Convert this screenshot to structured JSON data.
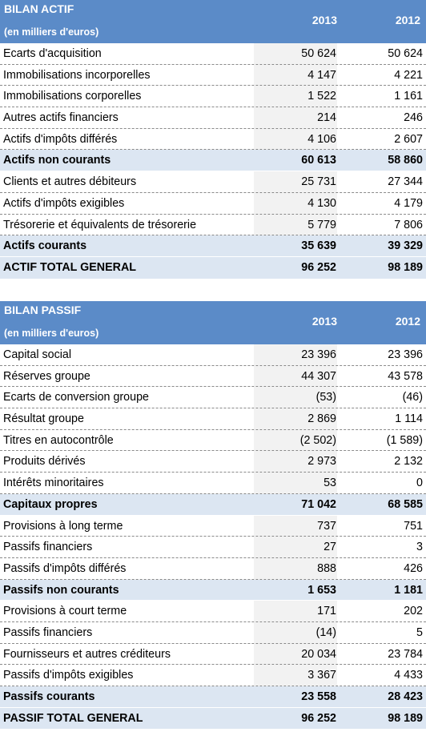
{
  "actif": {
    "title": "BILAN ACTIF",
    "subtitle": "(en milliers d'euros)",
    "year1": "2013",
    "year2": "2012",
    "rows": [
      {
        "label": "Ecarts d'acquisition",
        "v2013": "50 624",
        "v2012": "50 624",
        "kind": "normal"
      },
      {
        "label": "Immobilisations incorporelles",
        "v2013": "4 147",
        "v2012": "4 221",
        "kind": "normal"
      },
      {
        "label": "Immobilisations corporelles",
        "v2013": "1 522",
        "v2012": "1 161",
        "kind": "normal"
      },
      {
        "label": "Autres actifs financiers",
        "v2013": "214",
        "v2012": "246",
        "kind": "normal"
      },
      {
        "label": "Actifs d'impôts différés",
        "v2013": "4 106",
        "v2012": "2 607",
        "kind": "normal"
      },
      {
        "label": "Actifs non courants",
        "v2013": "60 613",
        "v2012": "58 860",
        "kind": "sub"
      },
      {
        "label": "Clients et autres débiteurs",
        "v2013": "25 731",
        "v2012": "27 344",
        "kind": "normal"
      },
      {
        "label": "Actifs d'impôts exigibles",
        "v2013": "4 130",
        "v2012": "4 179",
        "kind": "normal"
      },
      {
        "label": "Trésorerie et équivalents de trésorerie",
        "v2013": "5 779",
        "v2012": "7 806",
        "kind": "normal"
      },
      {
        "label": "Actifs courants",
        "v2013": "35 639",
        "v2012": "39 329",
        "kind": "sub"
      },
      {
        "label": "ACTIF TOTAL GENERAL",
        "v2013": "96 252",
        "v2012": "98 189",
        "kind": "tot"
      }
    ]
  },
  "passif": {
    "title": "BILAN PASSIF",
    "subtitle": "(en milliers d'euros)",
    "year1": "2013",
    "year2": "2012",
    "rows": [
      {
        "label": "Capital social",
        "v2013": "23 396",
        "v2012": "23 396",
        "kind": "normal"
      },
      {
        "label": "Réserves groupe",
        "v2013": "44 307",
        "v2012": "43 578",
        "kind": "normal"
      },
      {
        "label": "Ecarts de conversion groupe",
        "v2013": "(53)",
        "v2012": "(46)",
        "kind": "normal"
      },
      {
        "label": "Résultat groupe",
        "v2013": "2 869",
        "v2012": "1 114",
        "kind": "normal"
      },
      {
        "label": "Titres en autocontrôle",
        "v2013": "(2 502)",
        "v2012": "(1 589)",
        "kind": "normal"
      },
      {
        "label": "Produits dérivés",
        "v2013": "2 973",
        "v2012": "2 132",
        "kind": "normal"
      },
      {
        "label": "Intérêts minoritaires",
        "v2013": "53",
        "v2012": "0",
        "kind": "normal"
      },
      {
        "label": "Capitaux propres",
        "v2013": "71 042",
        "v2012": "68 585",
        "kind": "sub"
      },
      {
        "label": "Provisions à long terme",
        "v2013": "737",
        "v2012": "751",
        "kind": "normal"
      },
      {
        "label": "Passifs financiers",
        "v2013": "27",
        "v2012": "3",
        "kind": "normal"
      },
      {
        "label": "Passifs d'impôts différés",
        "v2013": "888",
        "v2012": "426",
        "kind": "normal"
      },
      {
        "label": "Passifs non courants",
        "v2013": "1 653",
        "v2012": "1 181",
        "kind": "sub"
      },
      {
        "label": "Provisions à court terme",
        "v2013": "171",
        "v2012": "202",
        "kind": "normal"
      },
      {
        "label": "Passifs financiers",
        "v2013": "(14)",
        "v2012": "5",
        "kind": "normal"
      },
      {
        "label": "Fournisseurs et autres créditeurs",
        "v2013": "20 034",
        "v2012": "23 784",
        "kind": "normal"
      },
      {
        "label": "Passifs d'impôts exigibles",
        "v2013": "3 367",
        "v2012": "4 433",
        "kind": "normal"
      },
      {
        "label": "Passifs courants",
        "v2013": "23 558",
        "v2012": "28 423",
        "kind": "sub"
      },
      {
        "label": "PASSIF TOTAL GENERAL",
        "v2013": "96 252",
        "v2012": "98 189",
        "kind": "tot"
      }
    ]
  }
}
